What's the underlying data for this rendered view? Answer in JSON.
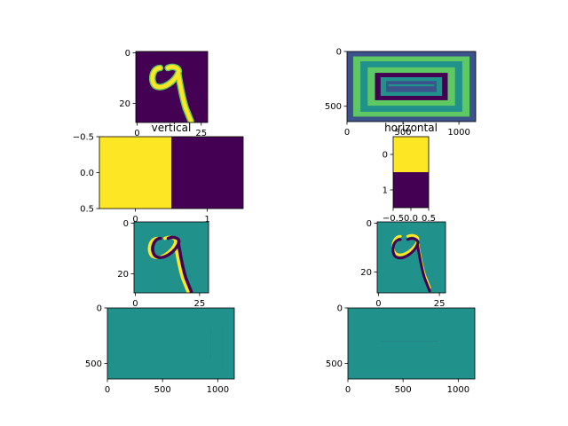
{
  "figure": {
    "background": "#ffffff"
  },
  "colors": {
    "viridis_dark": "#440154",
    "viridis_blue": "#3b528b",
    "viridis_teal": "#21918c",
    "viridis_green": "#5ec962",
    "viridis_yellow": "#fde725"
  },
  "chart_data": [
    {
      "type": "heatmap",
      "content": "digit-9",
      "xlim": [
        -0.5,
        27.5
      ],
      "ylim": [
        27.5,
        -0.5
      ],
      "xticks": [
        {
          "v": 0,
          "label": "0"
        },
        {
          "v": 25,
          "label": "25"
        }
      ],
      "yticks": [
        {
          "v": 0,
          "label": "0"
        },
        {
          "v": 20,
          "label": "20"
        }
      ],
      "colormap": "viridis"
    },
    {
      "type": "heatmap",
      "content": "nested-rectangles",
      "xlim": [
        0,
        1150
      ],
      "ylim": [
        640,
        0
      ],
      "xticks": [
        {
          "v": 0,
          "label": "0"
        },
        {
          "v": 500,
          "label": "500"
        },
        {
          "v": 1000,
          "label": "1000"
        }
      ],
      "yticks": [
        {
          "v": 0,
          "label": "0"
        },
        {
          "v": 500,
          "label": "500"
        }
      ],
      "colormap": "viridis"
    },
    {
      "type": "heatmap",
      "title": "vertical",
      "content": "kernel",
      "values": [
        [
          1,
          0
        ]
      ],
      "xlim": [
        -0.5,
        1.5
      ],
      "ylim": [
        0.5,
        -0.5
      ],
      "xticks": [
        {
          "v": 0,
          "label": "0"
        },
        {
          "v": 1,
          "label": "1"
        }
      ],
      "yticks": [
        {
          "v": -0.5,
          "label": "−0.5"
        },
        {
          "v": 0,
          "label": "0.0"
        },
        {
          "v": 0.5,
          "label": "0.5"
        }
      ],
      "colormap": "viridis"
    },
    {
      "type": "heatmap",
      "title": "horizontal",
      "content": "kernel",
      "values": [
        [
          1
        ],
        [
          0
        ]
      ],
      "xlim": [
        -0.5,
        0.5
      ],
      "ylim": [
        1.5,
        -0.5
      ],
      "xticks": [
        {
          "v": -0.5,
          "label": "−0.5"
        },
        {
          "v": 0,
          "label": "0.0"
        },
        {
          "v": 0.5,
          "label": "0.5"
        }
      ],
      "yticks": [
        {
          "v": 0,
          "label": "0"
        },
        {
          "v": 1,
          "label": "1"
        }
      ],
      "colormap": "viridis"
    },
    {
      "type": "heatmap",
      "content": "digit-9-vertical-edges",
      "xlim": [
        -0.5,
        28.5
      ],
      "ylim": [
        27.5,
        -0.5
      ],
      "xticks": [
        {
          "v": 0,
          "label": "0"
        },
        {
          "v": 25,
          "label": "25"
        }
      ],
      "yticks": [
        {
          "v": 0,
          "label": "0"
        },
        {
          "v": 20,
          "label": "20"
        }
      ],
      "colormap": "viridis"
    },
    {
      "type": "heatmap",
      "content": "digit-9-horizontal-edges",
      "xlim": [
        -0.5,
        27.5
      ],
      "ylim": [
        28.5,
        -0.5
      ],
      "xticks": [
        {
          "v": 0,
          "label": "0"
        },
        {
          "v": 25,
          "label": "25"
        }
      ],
      "yticks": [
        {
          "v": 0,
          "label": "0"
        },
        {
          "v": 20,
          "label": "20"
        }
      ],
      "colormap": "viridis"
    },
    {
      "type": "heatmap",
      "content": "rectangles-vertical-edges",
      "xlim": [
        0,
        1150
      ],
      "ylim": [
        640,
        0
      ],
      "xticks": [
        {
          "v": 0,
          "label": "0"
        },
        {
          "v": 500,
          "label": "500"
        },
        {
          "v": 1000,
          "label": "1000"
        }
      ],
      "yticks": [
        {
          "v": 0,
          "label": "0"
        },
        {
          "v": 500,
          "label": "500"
        }
      ],
      "colormap": "viridis"
    },
    {
      "type": "heatmap",
      "content": "rectangles-horizontal-edges",
      "xlim": [
        0,
        1150
      ],
      "ylim": [
        640,
        0
      ],
      "xticks": [
        {
          "v": 0,
          "label": "0"
        },
        {
          "v": 500,
          "label": "500"
        },
        {
          "v": 1000,
          "label": "1000"
        }
      ],
      "yticks": [
        {
          "v": 0,
          "label": "0"
        },
        {
          "v": 500,
          "label": "500"
        }
      ],
      "colormap": "viridis"
    }
  ]
}
